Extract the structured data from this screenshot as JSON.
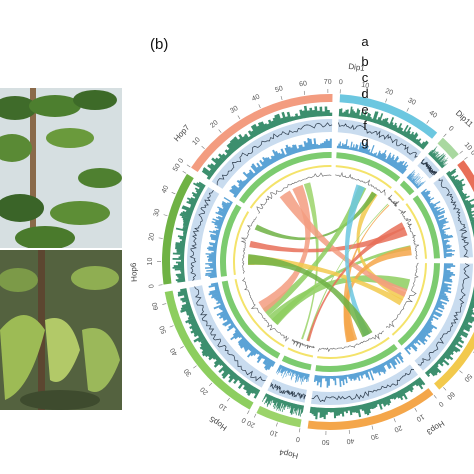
{
  "panel_label": "(b)",
  "track_labels": [
    "a",
    "b",
    "c",
    "d",
    "e",
    "f",
    "g"
  ],
  "chart_data": {
    "type": "circos",
    "ticks": [
      0,
      10,
      20,
      30,
      40,
      50,
      60,
      70
    ],
    "chromosomes": [
      {
        "name": "Dip1",
        "length": 46,
        "color": "#6cc7e0"
      },
      {
        "name": "Dip11",
        "length": 10,
        "color": "#a9d8a0"
      },
      {
        "name": "Hop1",
        "length": 45,
        "color": "#e86f58"
      },
      {
        "name": "Hop2",
        "length": 62,
        "color": "#f2c94c"
      },
      {
        "name": "Hop3",
        "length": 58,
        "color": "#f4a64a"
      },
      {
        "name": "Hop4",
        "length": 20,
        "color": "#9bd36a"
      },
      {
        "name": "Hop5",
        "length": 65,
        "color": "#8dce5f"
      },
      {
        "name": "Hop6",
        "length": 50,
        "color": "#6fb244"
      },
      {
        "name": "Hop7",
        "length": 72,
        "color": "#f39c80"
      }
    ]
  },
  "colors": {
    "dark_green": "#3c8f6e",
    "light_blue": "#c9dcef",
    "blue": "#5ba3d6",
    "green": "#7ccb6f",
    "yellow": "#f4e36a"
  },
  "icons": [
    "leaf-photo-upper",
    "leaf-photo-lower"
  ]
}
